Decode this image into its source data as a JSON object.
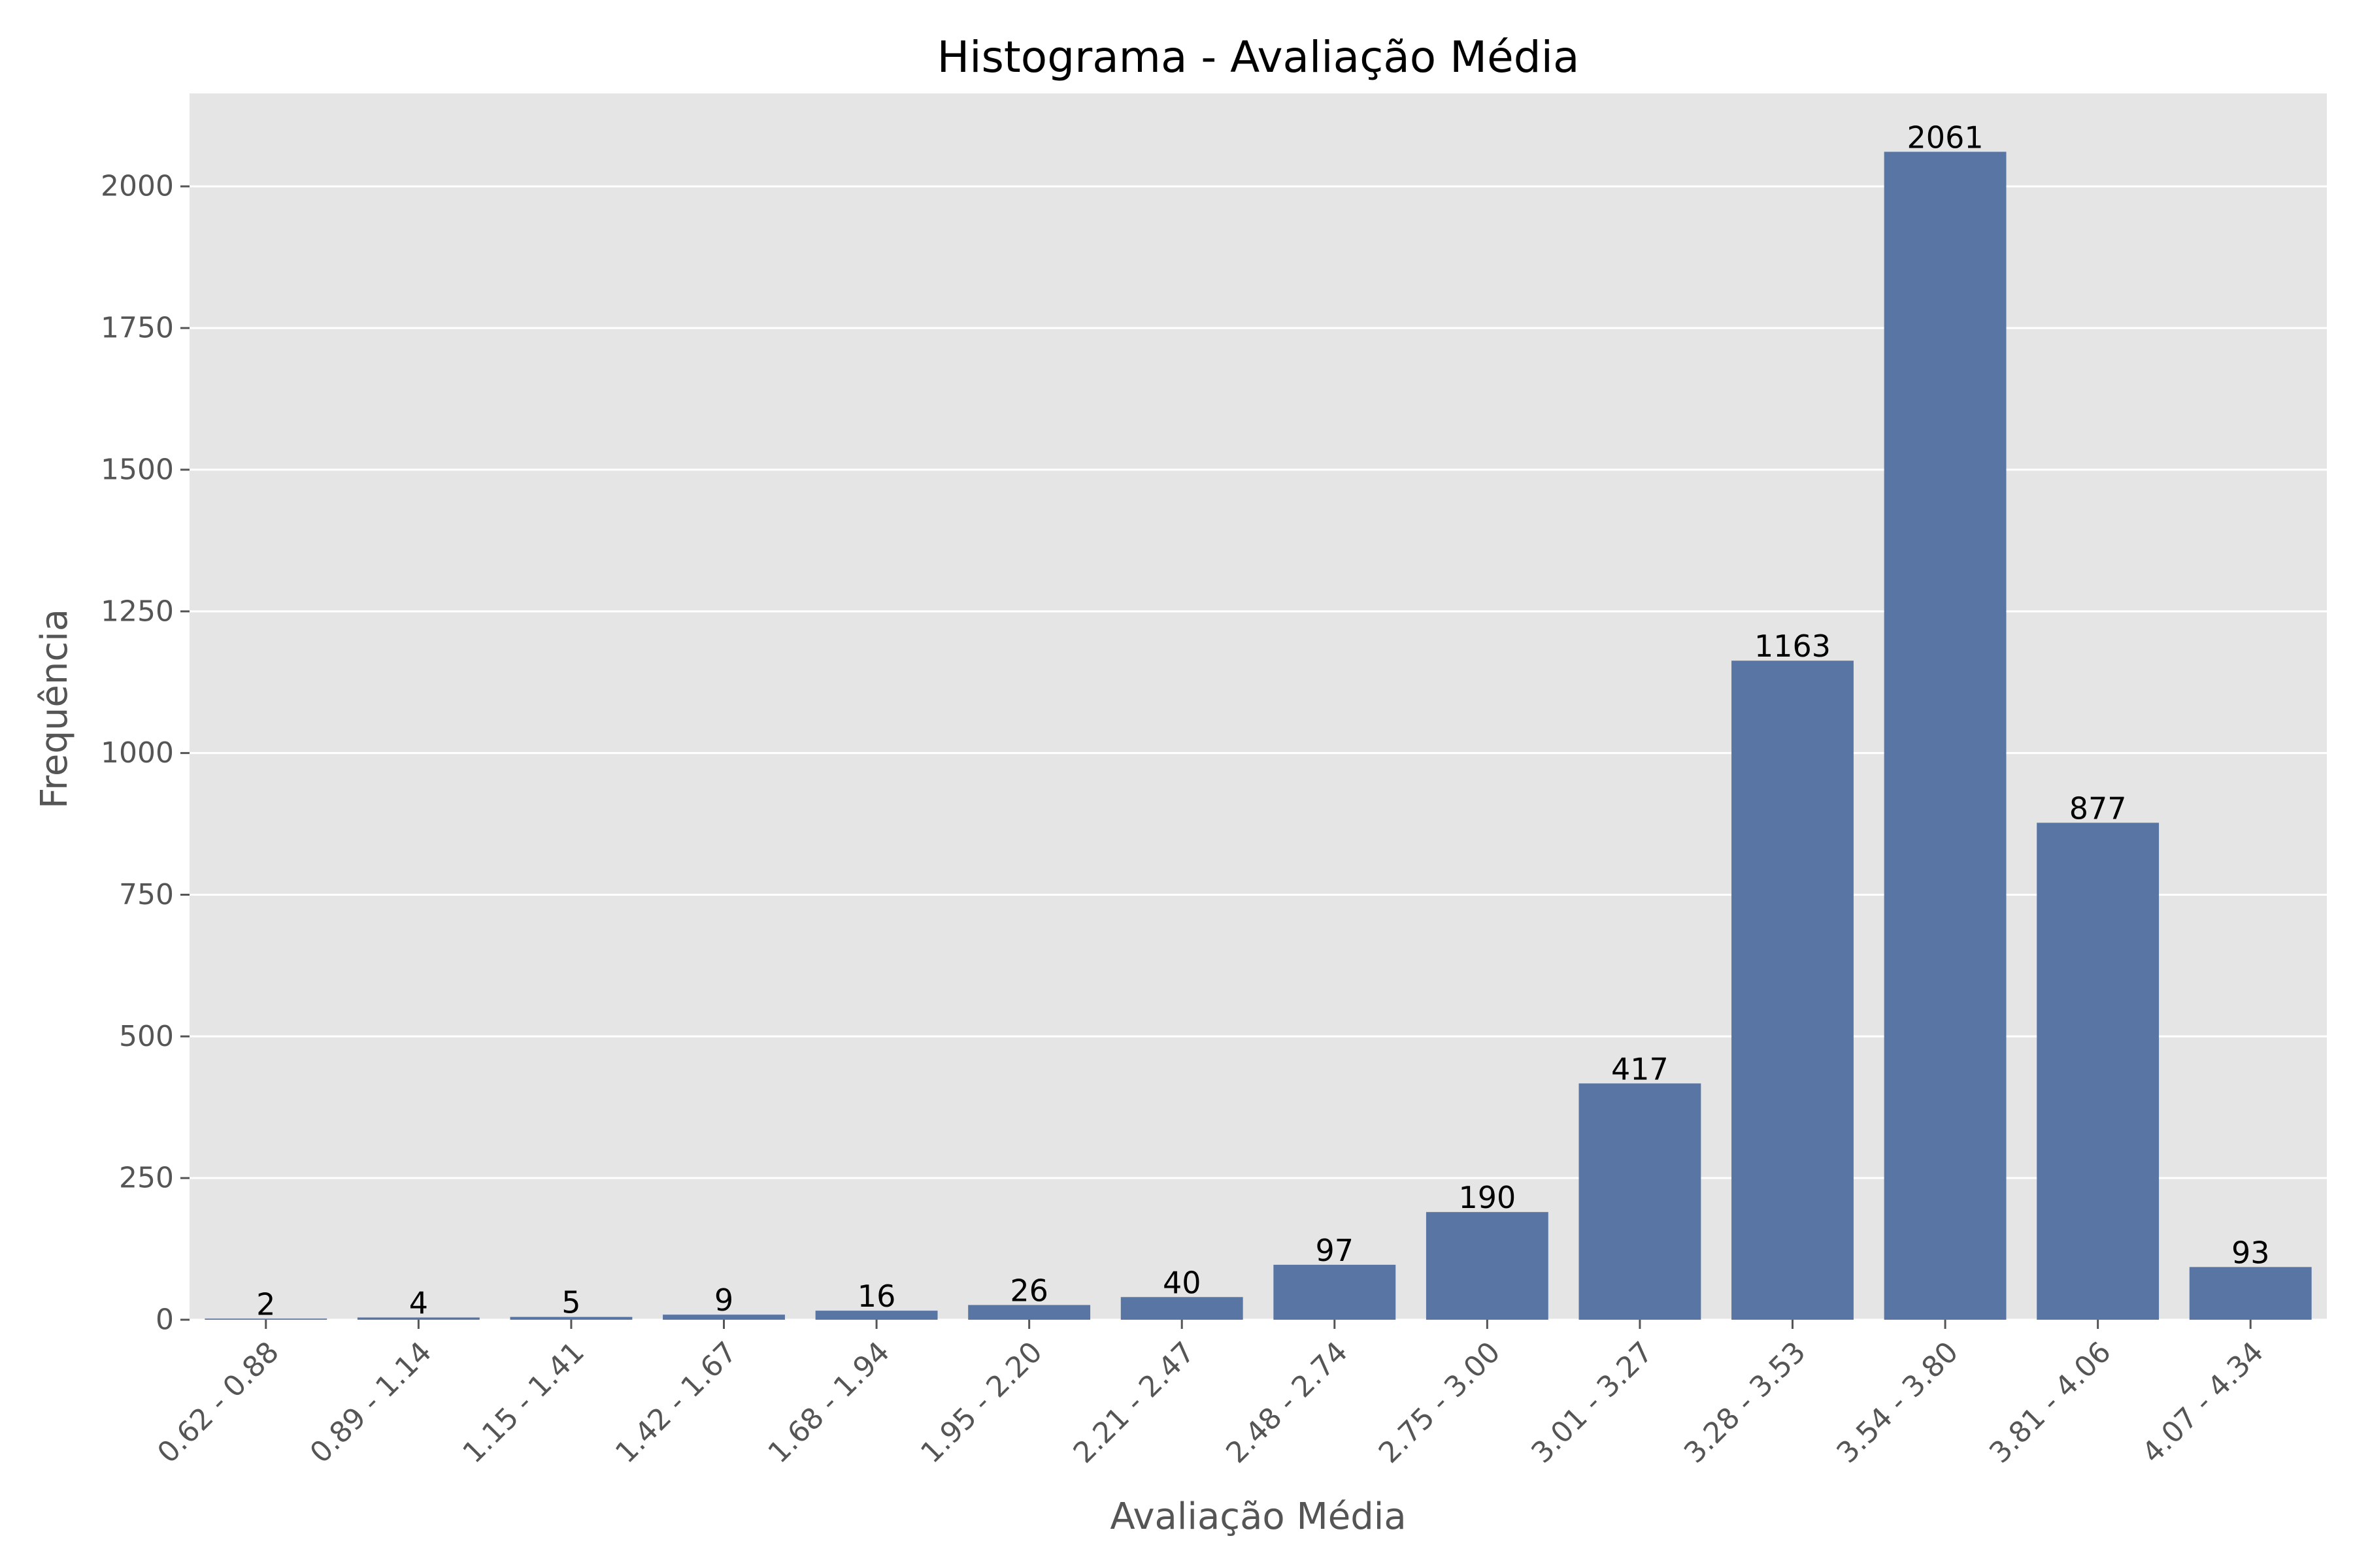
{
  "chart_data": {
    "type": "bar",
    "title": "Histograma - Avaliação Média",
    "xlabel": "Avaliação Média",
    "ylabel": "Frequência",
    "categories": [
      "0.62 - 0.88",
      "0.89 - 1.14",
      "1.15 - 1.41",
      "1.42 - 1.67",
      "1.68 - 1.94",
      "1.95 - 2.20",
      "2.21 - 2.47",
      "2.48 - 2.74",
      "2.75 - 3.00",
      "3.01 - 3.27",
      "3.28 - 3.53",
      "3.54 - 3.80",
      "3.81 - 4.06",
      "4.07 - 4.34"
    ],
    "values": [
      2,
      4,
      5,
      9,
      16,
      26,
      40,
      97,
      190,
      417,
      1163,
      2061,
      877,
      93
    ],
    "ylim": [
      0,
      2164
    ],
    "yticks": [
      0,
      250,
      500,
      750,
      1000,
      1250,
      1500,
      1750,
      2000
    ],
    "grid": true,
    "colors": {
      "bar": "#5975a4",
      "plot_background": "#e5e5e5",
      "grid": "#ffffff",
      "tick_text": "#555555",
      "label_text": "#555555",
      "title_text": "#000000",
      "value_text": "#000000"
    }
  }
}
